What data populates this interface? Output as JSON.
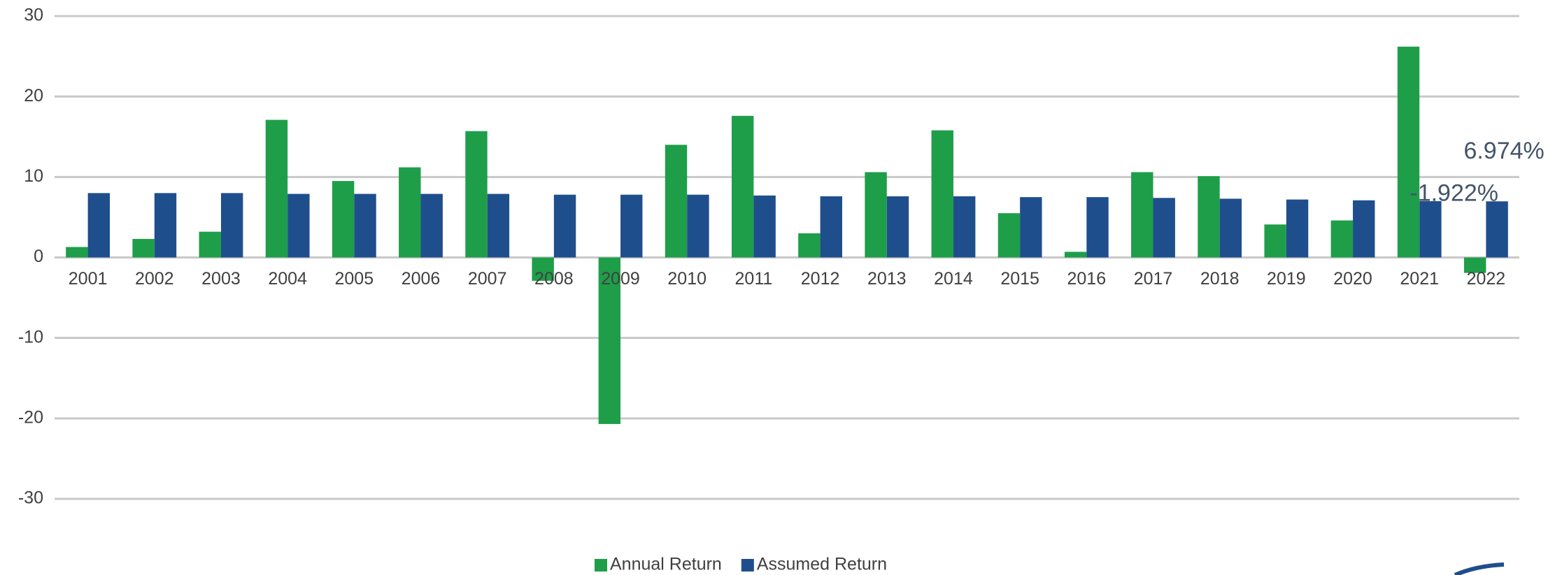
{
  "chart_data": {
    "type": "bar",
    "categories": [
      "2001",
      "2002",
      "2003",
      "2004",
      "2005",
      "2006",
      "2007",
      "2008",
      "2009",
      "2010",
      "2011",
      "2012",
      "2013",
      "2014",
      "2015",
      "2016",
      "2017",
      "2018",
      "2019",
      "2020",
      "2021",
      "2022"
    ],
    "series": [
      {
        "name": "Annual Return",
        "color": "#1e9e48",
        "values": [
          1.3,
          2.3,
          3.2,
          17.1,
          9.5,
          11.2,
          15.7,
          -2.9,
          -20.7,
          14.0,
          17.6,
          3.0,
          10.6,
          15.8,
          5.5,
          0.7,
          10.6,
          10.1,
          4.1,
          4.6,
          26.2,
          -1.922
        ],
        "value_labels": [
          null,
          null,
          null,
          null,
          null,
          null,
          null,
          null,
          null,
          null,
          null,
          null,
          null,
          null,
          null,
          null,
          null,
          null,
          null,
          null,
          null,
          "-1.922%"
        ]
      },
      {
        "name": "Assumed Return",
        "color": "#1f4e8c",
        "values": [
          8.0,
          8.0,
          8.0,
          7.9,
          7.9,
          7.9,
          7.9,
          7.8,
          7.8,
          7.8,
          7.7,
          7.6,
          7.6,
          7.6,
          7.5,
          7.5,
          7.4,
          7.3,
          7.2,
          7.1,
          7.0,
          6.974
        ],
        "value_labels": [
          null,
          null,
          null,
          null,
          null,
          null,
          null,
          null,
          null,
          null,
          null,
          null,
          null,
          null,
          null,
          null,
          null,
          null,
          null,
          null,
          null,
          "6.974%"
        ]
      }
    ],
    "ylim": [
      -30,
      30
    ],
    "yticks": [
      -30,
      -20,
      -10,
      0,
      10,
      20,
      30
    ],
    "grid": true,
    "legend": "bottom"
  }
}
